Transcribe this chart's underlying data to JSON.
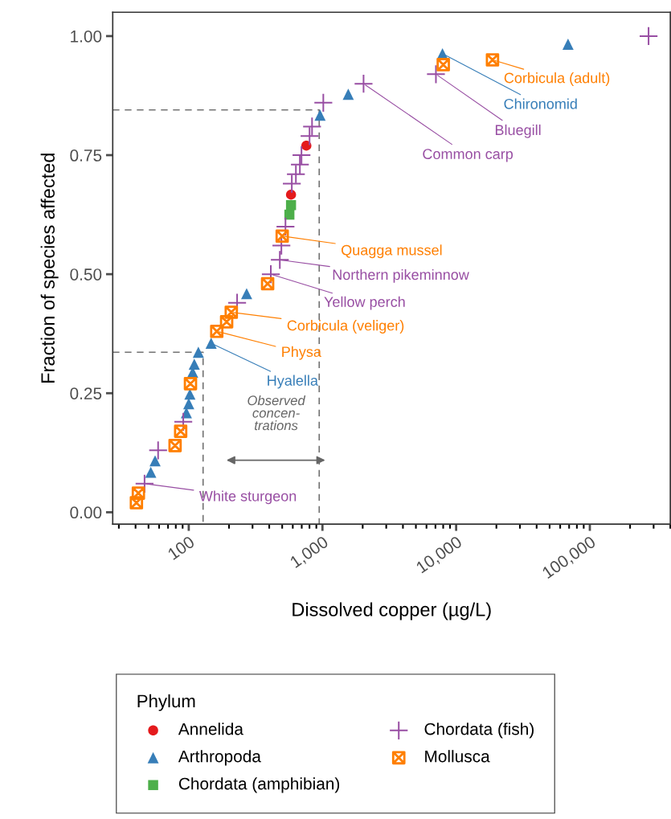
{
  "chart_data": {
    "type": "scatter",
    "xlabel": "Dissolved copper (µg/L)",
    "ylabel": "Fraction of species affected",
    "legend_title": "Phylum",
    "log": "x",
    "xlim": [
      27,
      400000
    ],
    "ylim": [
      -0.025,
      1.05
    ],
    "xticks": [
      100,
      {
        "value": 1000,
        "label": "1,000"
      },
      {
        "value": 10000,
        "label": "10,000"
      },
      {
        "value": 100000,
        "label": "100,000"
      }
    ],
    "yticks": [
      {
        "value": 0,
        "label": "0.00"
      },
      0.25,
      {
        "value": 0.5,
        "label": "0.50"
      },
      0.75,
      {
        "value": 1,
        "label": "1.00"
      }
    ],
    "grid": false,
    "legend": "bottom",
    "series": [
      {
        "type": "line",
        "color": "#737373",
        "line_style": "dashed",
        "marker": "none",
        "x": [
          27,
          128,
          128
        ],
        "values": [
          0.336,
          0.336,
          -0.025
        ]
      },
      {
        "type": "line",
        "color": "#737373",
        "line_style": "dashed",
        "marker": "none",
        "x": [
          27,
          946,
          946
        ],
        "values": [
          0.845,
          0.845,
          -0.025
        ]
      },
      {
        "name": "Annelida",
        "color": "#e41a1c",
        "marker": "circle",
        "x": [
          582,
          758
        ],
        "values": [
          0.667,
          0.77
        ]
      },
      {
        "name": "Arthropoda",
        "color": "#377eb8",
        "marker": "triangle",
        "x": [
          52,
          56,
          96,
          100,
          102,
          107,
          110,
          118,
          147,
          271,
          960,
          1560,
          7900,
          68700
        ],
        "values": [
          0.084,
          0.108,
          0.209,
          0.228,
          0.248,
          0.294,
          0.311,
          0.336,
          0.355,
          0.459,
          0.834,
          0.878,
          0.963,
          0.983
        ]
      },
      {
        "name": "Chordata (amphibian)",
        "color": "#4daf4a",
        "marker": "square",
        "x": [
          566,
          582
        ],
        "values": [
          0.625,
          0.645
        ]
      },
      {
        "name": "Chordata (fish)",
        "color": "#984ea3",
        "marker": "plus",
        "x": [
          46.7,
          59,
          91,
          230,
          411,
          480,
          493,
          529,
          590,
          633,
          678,
          697,
          801,
          836,
          1015,
          2030,
          7060,
          275000
        ],
        "values": [
          0.06,
          0.13,
          0.19,
          0.44,
          0.5,
          0.53,
          0.56,
          0.6,
          0.69,
          0.71,
          0.73,
          0.75,
          0.79,
          0.81,
          0.86,
          0.9,
          0.92,
          1.0
        ]
      },
      {
        "name": "Mollusca",
        "color": "#ff7f00",
        "marker": "cross",
        "x": [
          40.6,
          42,
          79,
          87,
          103,
          162,
          192,
          208,
          389,
          500,
          8010,
          18700
        ],
        "values": [
          0.02,
          0.04,
          0.14,
          0.17,
          0.27,
          0.38,
          0.4,
          0.42,
          0.48,
          0.58,
          0.94,
          0.95
        ]
      }
    ],
    "annotations": [
      {
        "text": "White sturgeon",
        "x": 46.7,
        "y": 0.06
      },
      {
        "text": "Hyalella",
        "x": 147,
        "y": 0.355
      },
      {
        "text": "Physa",
        "x": 162,
        "y": 0.38
      },
      {
        "text": "Corbicula (veliger)",
        "x": 208,
        "y": 0.42
      },
      {
        "text": "Yellow perch",
        "x": 411,
        "y": 0.5
      },
      {
        "text": "Northern pikeminnow",
        "x": 480,
        "y": 0.53
      },
      {
        "text": "Quagga mussel",
        "x": 500,
        "y": 0.58
      },
      {
        "text": "Common carp",
        "x": 2030,
        "y": 0.9
      },
      {
        "text": "Bluegill",
        "x": 7060,
        "y": 0.92
      },
      {
        "text": "Chironomid",
        "x": 7900,
        "y": 0.963
      },
      {
        "text": "Corbicula (adult)",
        "x": 18700,
        "y": 0.95
      },
      "Observed\nconcen-\ntrations"
    ]
  }
}
